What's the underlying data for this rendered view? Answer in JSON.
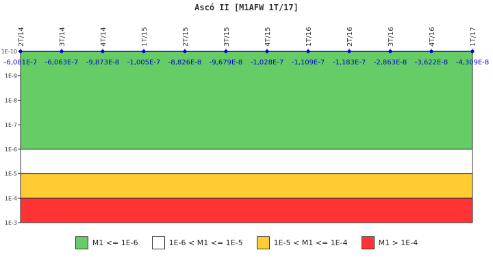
{
  "chart_data": {
    "type": "line",
    "title": "Ascó II [M1AFW 1T/17]",
    "categories": [
      "2T/14",
      "3T/14",
      "4T/14",
      "1T/15",
      "2T/15",
      "3T/15",
      "4T/15",
      "1T/16",
      "2T/16",
      "3T/16",
      "4T/16",
      "1T/17"
    ],
    "series": [
      {
        "values": [
          -6.081e-07,
          -6.063e-07,
          -9.873e-08,
          -1.005e-07,
          -8.826e-08,
          -9.679e-08,
          -1.028e-07,
          -1.109e-07,
          -1.183e-07,
          -2.863e-08,
          -3.622e-08,
          -4.309e-08
        ],
        "labels": [
          "-6,081E-7",
          "-6,063E-7",
          "-9,873E-8",
          "-1,005E-7",
          "-8,826E-8",
          "-9,679E-8",
          "-1,028E-7",
          "-1,109E-7",
          "-1,183E-7",
          "-2,863E-8",
          "-3,622E-8",
          "-4,309E-8"
        ],
        "color": "#0000cc"
      }
    ],
    "y_scale": "log",
    "y_reversed": true,
    "ylim": [
      "1E-10",
      "1E-3"
    ],
    "y_ticks": [
      "1E-10",
      "1E-9",
      "1E-8",
      "1E-7",
      "1E-6",
      "1E-5",
      "1E-4",
      "1E-3"
    ],
    "bands": [
      {
        "from_exp": -10,
        "to_exp": -6,
        "color": "#66cc66"
      },
      {
        "from_exp": -6,
        "to_exp": -5,
        "color": "#ffffff"
      },
      {
        "from_exp": -5,
        "to_exp": -4,
        "color": "#ffcc33"
      },
      {
        "from_exp": -4,
        "to_exp": -3,
        "color": "#ff3333"
      }
    ],
    "legend": [
      {
        "label": "M1 <= 1E-6",
        "color": "#66cc66"
      },
      {
        "label": "1E-6 < M1 <= 1E-5",
        "color": "#ffffff"
      },
      {
        "label": "1E-5 < M1 <= 1E-4",
        "color": "#ffcc33"
      },
      {
        "label": "M1 > 1E-4",
        "color": "#ff3333"
      }
    ],
    "legend_position": "bottom",
    "grid": false
  }
}
